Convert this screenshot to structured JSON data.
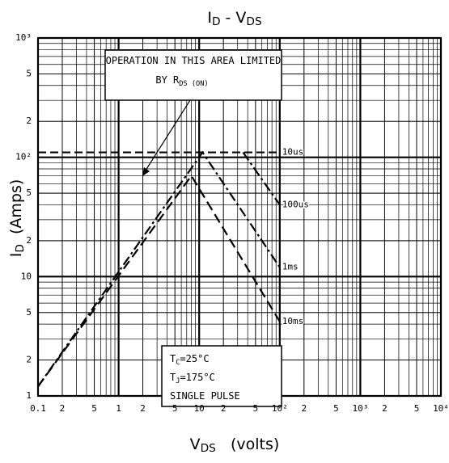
{
  "chart_data": {
    "type": "line",
    "title": [
      "I",
      "D",
      " - V",
      "DS"
    ],
    "x_label": [
      "V",
      "DS",
      "   (volts)"
    ],
    "y_label": [
      "I",
      "D",
      "  (Amps)"
    ],
    "log_x": true,
    "log_y": true,
    "grid": true,
    "xlim": [
      0.1,
      10000
    ],
    "ylim": [
      1,
      1000
    ],
    "xticks": [
      {
        "value": 0.1,
        "label": "0.1"
      },
      0.2,
      0.5,
      1,
      2,
      5,
      10,
      20,
      50,
      {
        "value": 100,
        "label": "10²"
      },
      200,
      500,
      {
        "value": 1000,
        "label": "10³"
      },
      2000,
      5000,
      {
        "value": 10000,
        "label": "10⁴"
      }
    ],
    "xtick_labels_short": [
      null,
      "2",
      "5",
      null,
      null,
      null,
      null,
      "2",
      "5",
      null,
      "2",
      "5",
      null,
      "2",
      "5",
      null
    ],
    "yticks": [
      1,
      2,
      5,
      10,
      20,
      50,
      {
        "value": 100,
        "label": "10²"
      },
      200,
      500,
      {
        "value": 1000,
        "label": "10³"
      }
    ],
    "ytick_labels_short": [
      null,
      "2",
      "5",
      null,
      "2",
      "5",
      null,
      "2",
      "5",
      null
    ],
    "series": [
      {
        "name": "10us",
        "color": "#000000",
        "dash": "10 5",
        "x": [
          0.1,
          100
        ],
        "values": [
          110,
          110
        ]
      },
      {
        "name": "100us",
        "color": "#000000",
        "dash": "12 4 3 4",
        "x": [
          35,
          100
        ],
        "values": [
          110,
          40
        ]
      },
      {
        "name": "1ms",
        "color": "#000000",
        "dash": "12 4 3 4",
        "x": [
          0.1,
          11,
          100
        ],
        "values": [
          1.2,
          110,
          12
        ]
      },
      {
        "name": "10ms",
        "color": "#000000",
        "dash": "12 6",
        "x": [
          0.1,
          8,
          100
        ],
        "values": [
          1.2,
          70,
          4.2
        ]
      }
    ],
    "annotations": [
      [
        "OPERATION IN THIS AREA LIMITED"
      ],
      [
        "BY R",
        "DS (ON)"
      ],
      [
        "T",
        "C",
        "=25°C"
      ],
      [
        "T",
        "J",
        "=175°C"
      ],
      [
        "SINGLE PULSE"
      ]
    ]
  }
}
